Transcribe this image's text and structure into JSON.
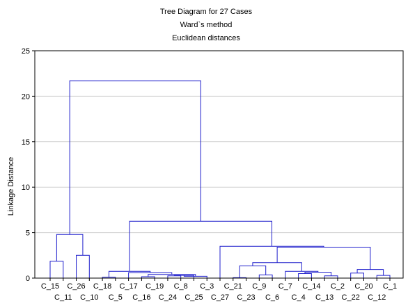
{
  "chart_data": {
    "type": "dendrogram",
    "title": "Tree Diagram for 27 Cases",
    "subtitle_lines": [
      "Ward`s method",
      "Euclidean distances"
    ],
    "ylabel": "Linkage Distance",
    "xlabel": "",
    "ylim": [
      0,
      25
    ],
    "yticks": [
      0,
      5,
      10,
      15,
      20,
      25
    ],
    "grid": true,
    "line_color": "#1f1fcc",
    "leaves": [
      "C_15",
      "C_11",
      "C_26",
      "C_10",
      "C_18",
      "C_5",
      "C_17",
      "C_16",
      "C_19",
      "C_24",
      "C_8",
      "C_25",
      "C_3",
      "C_27",
      "C_21",
      "C_23",
      "C_9",
      "C_6",
      "C_7",
      "C_4",
      "C_14",
      "C_13",
      "C_2",
      "C_22",
      "C_20",
      "C_12",
      "C_1"
    ],
    "merges": [
      {
        "a": "C_15",
        "b": "C_11",
        "height": 1.85
      },
      {
        "a": "C_26",
        "b": "C_10",
        "height": 2.5
      },
      {
        "a": "m0",
        "b": "m1",
        "height": 4.8
      },
      {
        "a": "C_18",
        "b": "C_5",
        "height": 0.1
      },
      {
        "a": "C_16",
        "b": "C_19",
        "height": 0.15
      },
      {
        "a": "C_24",
        "b": "C_8",
        "height": 0.25
      },
      {
        "a": "m5",
        "b": "C_25",
        "height": 0.3
      },
      {
        "a": "m6",
        "b": "C_3",
        "height": 0.2
      },
      {
        "a": "m4",
        "b": "m7",
        "height": 0.4
      },
      {
        "a": "C_17",
        "b": "m8",
        "height": 0.6
      },
      {
        "a": "m3",
        "b": "m9",
        "height": 0.75
      },
      {
        "a": "C_21",
        "b": "C_23",
        "height": 0.05
      },
      {
        "a": "C_9",
        "b": "C_6",
        "height": 0.35
      },
      {
        "a": "m11",
        "b": "m12",
        "height": 1.35
      },
      {
        "a": "C_4",
        "b": "C_14",
        "height": 0.5
      },
      {
        "a": "C_13",
        "b": "C_2",
        "height": 0.25
      },
      {
        "a": "m14",
        "b": "m15",
        "height": 0.65
      },
      {
        "a": "C_7",
        "b": "m16",
        "height": 0.75
      },
      {
        "a": "m13",
        "b": "m17",
        "height": 1.7
      },
      {
        "a": "C_22",
        "b": "C_20",
        "height": 0.55
      },
      {
        "a": "C_12",
        "b": "C_1",
        "height": 0.3
      },
      {
        "a": "m19",
        "b": "m20",
        "height": 0.95
      },
      {
        "a": "m18",
        "b": "m21",
        "height": 3.4
      },
      {
        "a": "C_27",
        "b": "m22",
        "height": 3.5
      },
      {
        "a": "m10",
        "b": "m23",
        "height": 6.25
      },
      {
        "a": "m2",
        "b": "m24",
        "height": 21.7
      }
    ]
  }
}
